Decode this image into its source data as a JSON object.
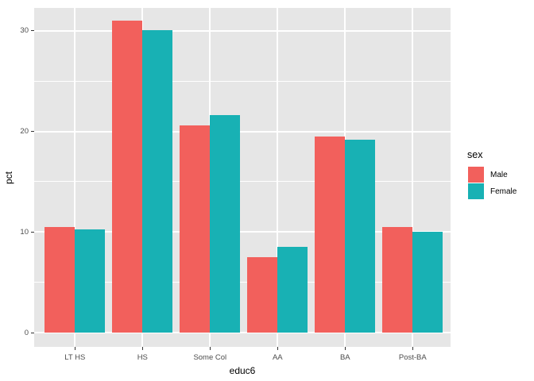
{
  "chart_data": {
    "type": "bar",
    "style": "ggplot2-grouped-dodge",
    "title": "",
    "xlabel": "educ6",
    "ylabel": "pct",
    "legend_title": "sex",
    "legend_position": "right",
    "grid": true,
    "categories": [
      "LT HS",
      "HS",
      "Some Col",
      "AA",
      "BA",
      "Post-BA"
    ],
    "series": [
      {
        "name": "Male",
        "color": "#F2605C",
        "values": [
          10.5,
          31.0,
          20.6,
          7.5,
          19.5,
          10.5
        ]
      },
      {
        "name": "Female",
        "color": "#18B1B4",
        "values": [
          10.3,
          30.1,
          21.6,
          8.5,
          19.2,
          10.0
        ]
      }
    ],
    "ylim": [
      0,
      32.5
    ],
    "yticks": [
      0,
      10,
      20,
      30
    ],
    "yticks_minor": [
      5,
      15,
      25
    ],
    "colors": {
      "panel_background": "#E6E6E6",
      "gridline": "#FFFFFF",
      "axis_text": "#4D4D4D",
      "axis_title": "#000000",
      "tick_mark": "#333333"
    }
  }
}
